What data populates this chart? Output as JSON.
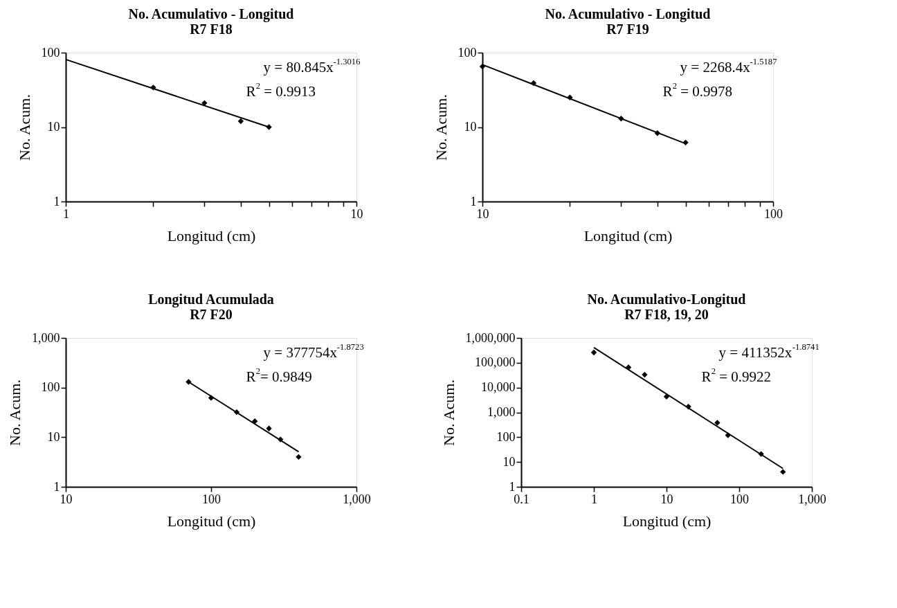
{
  "chart_data": [
    {
      "type": "scatter",
      "title": "No. Acumulativo - Longitud\nR7 F18",
      "xlabel": "Longitud (cm)",
      "ylabel": "No. Acum.",
      "log": "xy",
      "grid": false,
      "line_style": "solid",
      "xlim": [
        1,
        10
      ],
      "xticks": [
        1,
        {
          "value": 2,
          "label": null
        },
        {
          "value": 3,
          "label": null
        },
        {
          "value": 4,
          "label": null
        },
        {
          "value": 5,
          "label": null
        },
        {
          "value": 6,
          "label": null
        },
        {
          "value": 7,
          "label": null
        },
        {
          "value": 8,
          "label": null
        },
        {
          "value": 9,
          "label": null
        },
        10
      ],
      "ylim": [
        1,
        100
      ],
      "yticks": [
        1,
        10,
        100
      ],
      "annotations": [
        "y = 80.845x$^{-1.3016}$",
        "R$^{2}$ = 0.9913"
      ],
      "series": [
        {
          "type": "scatter",
          "marker": "diamond",
          "color": "#000000",
          "x": [
            2,
            3,
            4,
            5
          ],
          "values": [
            34,
            21,
            12,
            10
          ]
        },
        {
          "type": "line",
          "color": "#000000",
          "x": [
            1,
            5
          ],
          "values": [
            81,
            10
          ]
        }
      ]
    },
    {
      "type": "scatter",
      "title": "No. Acumulativo - Longitud\nR7 F19",
      "xlabel": "Longitud (cm)",
      "ylabel": "No. Acum.",
      "log": "xy",
      "grid": false,
      "line_style": "solid",
      "xlim": [
        10,
        100
      ],
      "xticks": [
        10,
        {
          "value": 20,
          "label": null
        },
        {
          "value": 30,
          "label": null
        },
        {
          "value": 40,
          "label": null
        },
        {
          "value": 50,
          "label": null
        },
        {
          "value": 60,
          "label": null
        },
        {
          "value": 70,
          "label": null
        },
        {
          "value": 80,
          "label": null
        },
        {
          "value": 90,
          "label": null
        },
        100
      ],
      "ylim": [
        1,
        100
      ],
      "yticks": [
        1,
        10,
        100
      ],
      "annotations": [
        "y = 2268.4x$^{-1.5187}$",
        "R$^{2}$ = 0.9978"
      ],
      "series": [
        {
          "type": "scatter",
          "marker": "diamond",
          "color": "#000000",
          "x": [
            10,
            15,
            20,
            30,
            40,
            50
          ],
          "values": [
            65,
            39,
            25,
            13,
            8.3,
            6.2
          ]
        },
        {
          "type": "line",
          "color": "#000000",
          "x": [
            10,
            50
          ],
          "values": [
            69,
            6.0
          ]
        }
      ]
    },
    {
      "type": "scatter",
      "title": "Longitud Acumulada\nR7 F20",
      "xlabel": "Longitud (cm)",
      "ylabel": "No. Acum.",
      "log": "xy",
      "grid": false,
      "line_style": "solid",
      "xlim": [
        10,
        1000
      ],
      "xticks": [
        10,
        100,
        {
          "value": 1000,
          "label": "1,000"
        }
      ],
      "ylim": [
        1,
        1000
      ],
      "yticks": [
        1,
        10,
        100,
        {
          "value": 1000,
          "label": "1,000"
        }
      ],
      "annotations": [
        "y = 377754x$^{-1.8723}$",
        "R$^{2}$= 0.9849"
      ],
      "series": [
        {
          "type": "scatter",
          "marker": "diamond",
          "color": "#000000",
          "x": [
            70,
            100,
            150,
            200,
            250,
            300,
            400
          ],
          "values": [
            130,
            62,
            32,
            21,
            15,
            9,
            4
          ]
        },
        {
          "type": "line",
          "color": "#000000",
          "x": [
            70,
            400
          ],
          "values": [
            130,
            5.1
          ]
        }
      ]
    },
    {
      "type": "scatter",
      "title": "No. Acumulativo-Longitud\nR7 F18, 19, 20",
      "xlabel": "Longitud (cm)",
      "ylabel": "No. Acum.",
      "log": "xy",
      "grid": false,
      "line_style": "solid",
      "xlim": [
        0.1,
        1000
      ],
      "xticks": [
        0.1,
        1,
        10,
        100,
        {
          "value": 1000,
          "label": "1,000"
        }
      ],
      "ylim": [
        1,
        1000000
      ],
      "yticks": [
        1,
        10,
        100,
        {
          "value": 1000,
          "label": "1,000"
        },
        {
          "value": 10000,
          "label": "10,000"
        },
        {
          "value": 100000,
          "label": "100,000"
        },
        {
          "value": 1000000,
          "label": "1,000,000"
        }
      ],
      "annotations": [
        "y = 411352x$^{-1.8741}$",
        "R$^{2}$ = 0.9922"
      ],
      "series": [
        {
          "type": "scatter",
          "marker": "diamond",
          "color": "#000000",
          "x": [
            1,
            3,
            5,
            10,
            20,
            50,
            70,
            200,
            400
          ],
          "values": [
            260000,
            65000,
            33000,
            4300,
            1700,
            380,
            120,
            21,
            4
          ]
        },
        {
          "type": "line",
          "color": "#000000",
          "x": [
            1,
            400
          ],
          "values": [
            410000,
            5.5
          ]
        }
      ]
    }
  ]
}
